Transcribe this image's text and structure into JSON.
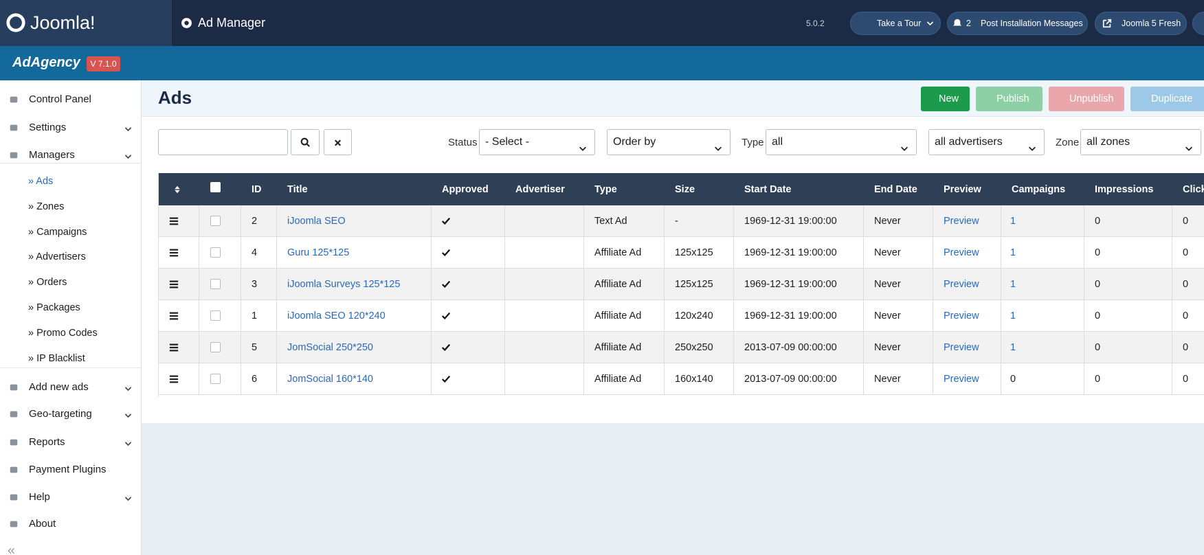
{
  "header": {
    "brand": "Joomla!",
    "page": "Ad Manager",
    "version": "5.0.2",
    "tour": "Take a Tour",
    "notifications": "2",
    "post_install": "Post Installation Messages",
    "site": "Joomla 5 Fresh"
  },
  "subheader": {
    "brand": "AdAgency",
    "version": "V 7.1.0"
  },
  "sidebar": {
    "items": [
      {
        "label": "Control Panel"
      },
      {
        "label": "Settings",
        "expand": true
      },
      {
        "label": "Managers",
        "expand": true,
        "sub": [
          "» Ads",
          "» Zones",
          "» Campaigns",
          "» Advertisers",
          "» Orders",
          "» Packages",
          "» Promo Codes",
          "» IP Blacklist"
        ]
      },
      {
        "label": "Add new ads",
        "expand": true
      },
      {
        "label": "Geo-targeting",
        "expand": true
      },
      {
        "label": "Reports",
        "expand": true
      },
      {
        "label": "Payment Plugins"
      },
      {
        "label": "Help",
        "expand": true
      },
      {
        "label": "About"
      }
    ]
  },
  "toolbar": {
    "title": "Ads",
    "buttons": [
      "New",
      "Publish",
      "Unpublish",
      "Duplicate"
    ]
  },
  "filters": {
    "status_label": "Status",
    "status": "- Select -",
    "order": "Order by",
    "type_label": "Type",
    "type": "all",
    "advertisers": "all advertisers",
    "zone_label": "Zone",
    "zone": "all zones"
  },
  "table": {
    "columns": [
      "ID",
      "Title",
      "Approved",
      "Advertiser",
      "Type",
      "Size",
      "Start Date",
      "End Date",
      "Preview",
      "Campaigns",
      "Impressions",
      "Click"
    ],
    "rows": [
      {
        "id": "2",
        "title": "iJoomla SEO",
        "type": "Text Ad",
        "size": "-",
        "start": "1969-12-31 19:00:00",
        "end": "Never",
        "preview": "Preview",
        "campaigns": "1",
        "impressions": "0",
        "clicks": "0"
      },
      {
        "id": "4",
        "title": "Guru 125*125",
        "type": "Affiliate Ad",
        "size": "125x125",
        "start": "1969-12-31 19:00:00",
        "end": "Never",
        "preview": "Preview",
        "campaigns": "1",
        "impressions": "0",
        "clicks": "0"
      },
      {
        "id": "3",
        "title": "iJoomla Surveys 125*125",
        "type": "Affiliate Ad",
        "size": "125x125",
        "start": "1969-12-31 19:00:00",
        "end": "Never",
        "preview": "Preview",
        "campaigns": "1",
        "impressions": "0",
        "clicks": "0"
      },
      {
        "id": "1",
        "title": "iJoomla SEO 120*240",
        "type": "Affiliate Ad",
        "size": "120x240",
        "start": "1969-12-31 19:00:00",
        "end": "Never",
        "preview": "Preview",
        "campaigns": "1",
        "impressions": "0",
        "clicks": "0"
      },
      {
        "id": "5",
        "title": "JomSocial 250*250",
        "type": "Affiliate Ad",
        "size": "250x250",
        "start": "2013-07-09 00:00:00",
        "end": "Never",
        "preview": "Preview",
        "campaigns": "1",
        "impressions": "0",
        "clicks": "0"
      },
      {
        "id": "6",
        "title": "JomSocial 160*140",
        "type": "Affiliate Ad",
        "size": "160x140",
        "start": "2013-07-09 00:00:00",
        "end": "Never",
        "preview": "Preview",
        "campaigns": "0",
        "impressions": "0",
        "clicks": "0"
      }
    ]
  }
}
